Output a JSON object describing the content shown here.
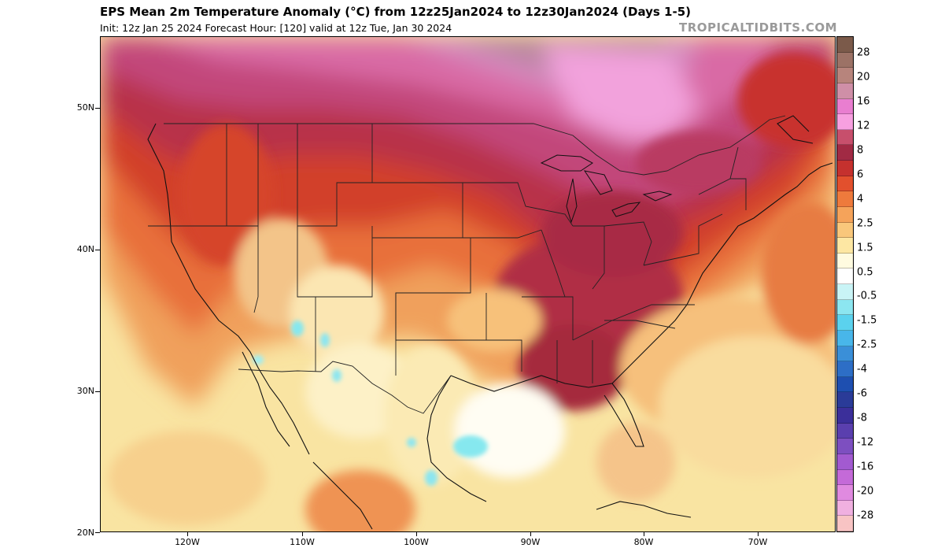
{
  "header": {
    "title": "EPS Mean 2m Temperature Anomaly (°C) from 12z25Jan2024 to 12z30Jan2024 (Days 1-5)",
    "subtitle": "Init: 12z Jan 25 2024   Forecast Hour: [120]   valid at 12z Tue, Jan 30 2024",
    "watermark": "TROPICALTIDBITS.COM"
  },
  "axes": {
    "lat_labels": [
      "50N",
      "40N",
      "30N",
      "20N"
    ],
    "lon_labels": [
      "120W",
      "110W",
      "100W",
      "90W",
      "80W",
      "70W"
    ]
  },
  "colorbar": {
    "labels": [
      "28",
      "20",
      "16",
      "12",
      "8",
      "6",
      "4",
      "2.5",
      "1.5",
      "0.5",
      "-0.5",
      "-1.5",
      "-2.5",
      "-4",
      "-6",
      "-8",
      "-12",
      "-16",
      "-20",
      "-28"
    ],
    "colors": [
      "#7b5a4a",
      "#9c7266",
      "#b7847c",
      "#cf8fa7",
      "#e97ed0",
      "#f7a0e0",
      "#c74f6c",
      "#a12a44",
      "#c5312e",
      "#e2502d",
      "#ee7a3c",
      "#f5a35a",
      "#f9c77b",
      "#fde7a3",
      "#fffbe0",
      "#ffffff",
      "#c9f4f6",
      "#8ce6f0",
      "#5bd2ee",
      "#48b6ea",
      "#3a8fd8",
      "#2d6ec6",
      "#1e4fb0",
      "#2a3b98",
      "#3b2f9a",
      "#5a3fae",
      "#7d4fc0",
      "#a25ad0",
      "#c46ad8",
      "#e08ae0",
      "#f0b0e0",
      "#f8c4c4"
    ]
  }
}
